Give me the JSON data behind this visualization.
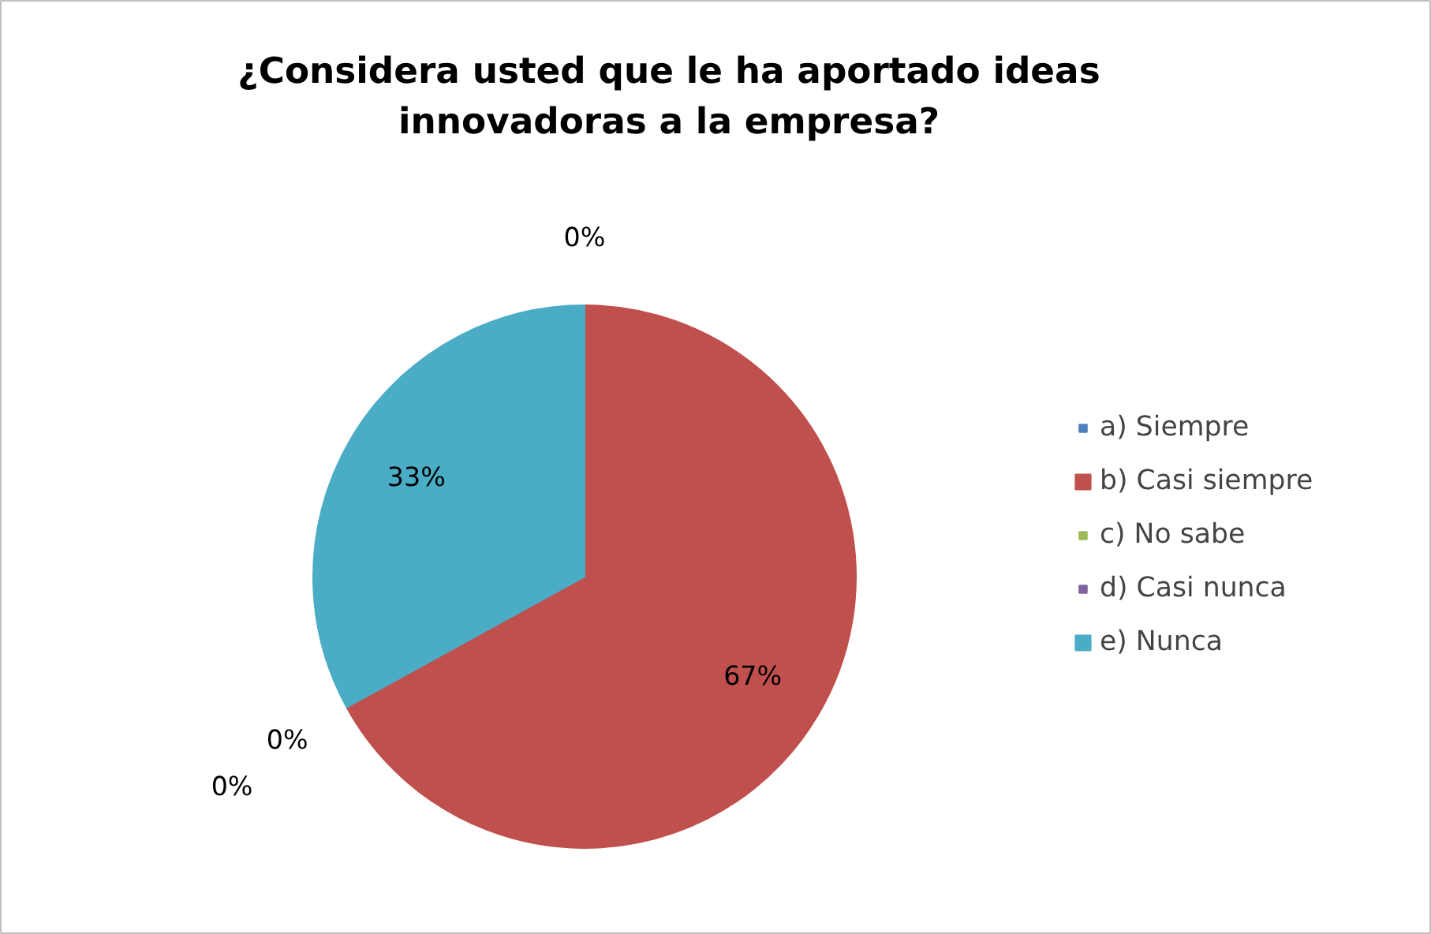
{
  "chart_data": {
    "type": "pie",
    "title": "¿Considera usted que le ha aportado ideas innovadoras a la empresa?",
    "categories": [
      "a) Siempre",
      "b) Casi siempre",
      "c) No sabe",
      "d) Casi nunca",
      "e) Nunca"
    ],
    "values": [
      0,
      67,
      0,
      0,
      33
    ],
    "colors": [
      "#4f81bd",
      "#c0504d",
      "#9bbb59",
      "#8064a2",
      "#4bacc6"
    ],
    "value_labels": [
      "0%",
      "67%",
      "0%",
      "0%",
      "33%"
    ],
    "legend": "right"
  }
}
